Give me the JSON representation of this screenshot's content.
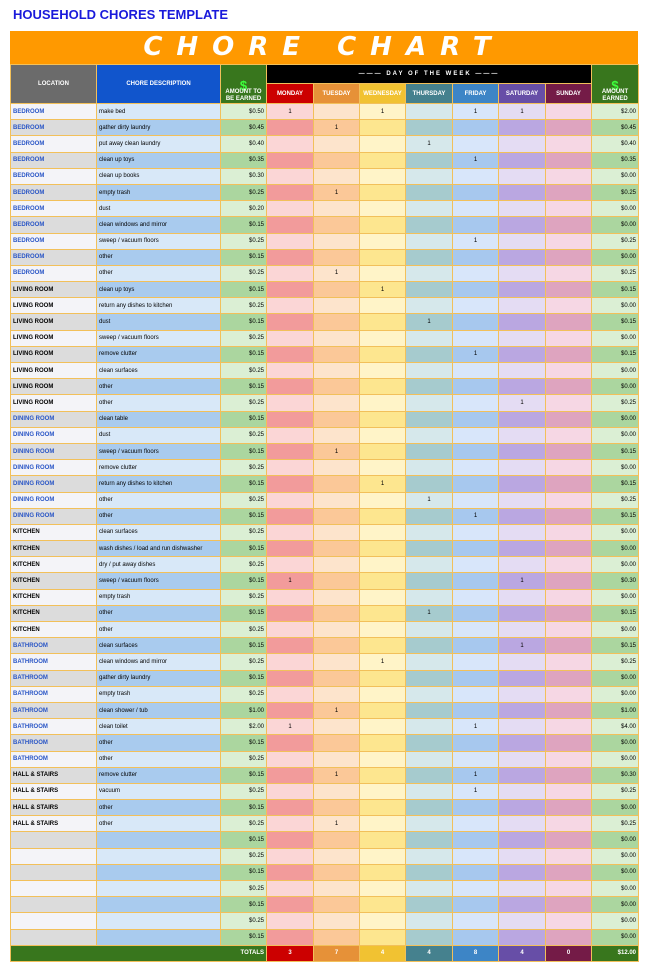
{
  "page_title": "HOUSEHOLD CHORES TEMPLATE",
  "banner": "CHORE CHART",
  "headers": {
    "location": "LOCATION",
    "description": "CHORE DESCRIPTION",
    "amount": "AMOUNT TO BE EARNED",
    "dollar": "$",
    "day_of_week": "——— DAY OF THE WEEK ———",
    "days": [
      "MONDAY",
      "TUESDAY",
      "WEDNESDAY",
      "THURSDAY",
      "FRIDAY",
      "SATURDAY",
      "SUNDAY"
    ],
    "earned": "AMOUNT EARNED"
  },
  "colors": {
    "header": [
      "#6b6b6b",
      "#1155cc",
      "#38761d",
      "#cc0000",
      "#e69138",
      "#f1c232",
      "#45818e",
      "#3d85c6",
      "#674ea7",
      "#741b47",
      "#38761d"
    ],
    "light": [
      "#f4f4f8",
      "#d8e8f8",
      "#dbefd4",
      "#fbd6d6",
      "#fde4cc",
      "#fff4c8",
      "#d6e8eb",
      "#d8e6fa",
      "#e4dcf3",
      "#f6d7e4",
      "#dbefd4"
    ],
    "dark": [
      "#dcdcdc",
      "#a9cbee",
      "#abd69f",
      "#f29b9b",
      "#fbc898",
      "#fde68f",
      "#a6cbce",
      "#a7c8ee",
      "#baa7e1",
      "#dea4bf",
      "#abd69f"
    ]
  },
  "rows": [
    [
      "BEDROOM",
      "make bed",
      "$0.50",
      [
        1,
        0,
        1,
        0,
        1,
        1,
        0
      ],
      "$2.00"
    ],
    [
      "BEDROOM",
      "gather dirty laundry",
      "$0.45",
      [
        0,
        1,
        0,
        0,
        0,
        0,
        0
      ],
      "$0.45"
    ],
    [
      "BEDROOM",
      "put away clean laundry",
      "$0.40",
      [
        0,
        0,
        0,
        1,
        0,
        0,
        0
      ],
      "$0.40"
    ],
    [
      "BEDROOM",
      "clean up toys",
      "$0.35",
      [
        0,
        0,
        0,
        0,
        1,
        0,
        0
      ],
      "$0.35"
    ],
    [
      "BEDROOM",
      "clean up books",
      "$0.30",
      [
        0,
        0,
        0,
        0,
        0,
        0,
        0
      ],
      "$0.00"
    ],
    [
      "BEDROOM",
      "empty trash",
      "$0.25",
      [
        0,
        1,
        0,
        0,
        0,
        0,
        0
      ],
      "$0.25"
    ],
    [
      "BEDROOM",
      "dust",
      "$0.20",
      [
        0,
        0,
        0,
        0,
        0,
        0,
        0
      ],
      "$0.00"
    ],
    [
      "BEDROOM",
      "clean windows and mirror",
      "$0.15",
      [
        0,
        0,
        0,
        0,
        0,
        0,
        0
      ],
      "$0.00"
    ],
    [
      "BEDROOM",
      "sweep / vacuum floors",
      "$0.25",
      [
        0,
        0,
        0,
        0,
        1,
        0,
        0
      ],
      "$0.25"
    ],
    [
      "BEDROOM",
      "other",
      "$0.15",
      [
        0,
        0,
        0,
        0,
        0,
        0,
        0
      ],
      "$0.00"
    ],
    [
      "BEDROOM",
      "other",
      "$0.25",
      [
        0,
        1,
        0,
        0,
        0,
        0,
        0
      ],
      "$0.25"
    ],
    [
      "LIVING ROOM",
      "clean up toys",
      "$0.15",
      [
        0,
        0,
        1,
        0,
        0,
        0,
        0
      ],
      "$0.15"
    ],
    [
      "LIVING ROOM",
      "return any dishes to kitchen",
      "$0.25",
      [
        0,
        0,
        0,
        0,
        0,
        0,
        0
      ],
      "$0.00"
    ],
    [
      "LIVING ROOM",
      "dust",
      "$0.15",
      [
        0,
        0,
        0,
        1,
        0,
        0,
        0
      ],
      "$0.15"
    ],
    [
      "LIVING ROOM",
      "sweep / vacuum floors",
      "$0.25",
      [
        0,
        0,
        0,
        0,
        0,
        0,
        0
      ],
      "$0.00"
    ],
    [
      "LIVING ROOM",
      "remove clutter",
      "$0.15",
      [
        0,
        0,
        0,
        0,
        1,
        0,
        0
      ],
      "$0.15"
    ],
    [
      "LIVING ROOM",
      "clean surfaces",
      "$0.25",
      [
        0,
        0,
        0,
        0,
        0,
        0,
        0
      ],
      "$0.00"
    ],
    [
      "LIVING ROOM",
      "other",
      "$0.15",
      [
        0,
        0,
        0,
        0,
        0,
        0,
        0
      ],
      "$0.00"
    ],
    [
      "LIVING ROOM",
      "other",
      "$0.25",
      [
        0,
        0,
        0,
        0,
        0,
        1,
        0
      ],
      "$0.25"
    ],
    [
      "DINING ROOM",
      "clean table",
      "$0.15",
      [
        0,
        0,
        0,
        0,
        0,
        0,
        0
      ],
      "$0.00"
    ],
    [
      "DINING ROOM",
      "dust",
      "$0.25",
      [
        0,
        0,
        0,
        0,
        0,
        0,
        0
      ],
      "$0.00"
    ],
    [
      "DINING ROOM",
      "sweep / vacuum floors",
      "$0.15",
      [
        0,
        1,
        0,
        0,
        0,
        0,
        0
      ],
      "$0.15"
    ],
    [
      "DINING ROOM",
      "remove clutter",
      "$0.25",
      [
        0,
        0,
        0,
        0,
        0,
        0,
        0
      ],
      "$0.00"
    ],
    [
      "DINING ROOM",
      "return any dishes to kitchen",
      "$0.15",
      [
        0,
        0,
        1,
        0,
        0,
        0,
        0
      ],
      "$0.15"
    ],
    [
      "DINING ROOM",
      "other",
      "$0.25",
      [
        0,
        0,
        0,
        1,
        0,
        0,
        0
      ],
      "$0.25"
    ],
    [
      "DINING ROOM",
      "other",
      "$0.15",
      [
        0,
        0,
        0,
        0,
        1,
        0,
        0
      ],
      "$0.15"
    ],
    [
      "KITCHEN",
      "clean surfaces",
      "$0.25",
      [
        0,
        0,
        0,
        0,
        0,
        0,
        0
      ],
      "$0.00"
    ],
    [
      "KITCHEN",
      "wash dishes / load and run dishwasher",
      "$0.15",
      [
        0,
        0,
        0,
        0,
        0,
        0,
        0
      ],
      "$0.00"
    ],
    [
      "KITCHEN",
      "dry / put away dishes",
      "$0.25",
      [
        0,
        0,
        0,
        0,
        0,
        0,
        0
      ],
      "$0.00"
    ],
    [
      "KITCHEN",
      "sweep / vacuum floors",
      "$0.15",
      [
        1,
        0,
        0,
        0,
        0,
        1,
        0
      ],
      "$0.30"
    ],
    [
      "KITCHEN",
      "empty trash",
      "$0.25",
      [
        0,
        0,
        0,
        0,
        0,
        0,
        0
      ],
      "$0.00"
    ],
    [
      "KITCHEN",
      "other",
      "$0.15",
      [
        0,
        0,
        0,
        1,
        0,
        0,
        0
      ],
      "$0.15"
    ],
    [
      "KITCHEN",
      "other",
      "$0.25",
      [
        0,
        0,
        0,
        0,
        0,
        0,
        0
      ],
      "$0.00"
    ],
    [
      "BATHROOM",
      "clean surfaces",
      "$0.15",
      [
        0,
        0,
        0,
        0,
        0,
        1,
        0
      ],
      "$0.15"
    ],
    [
      "BATHROOM",
      "clean windows and mirror",
      "$0.25",
      [
        0,
        0,
        1,
        0,
        0,
        0,
        0
      ],
      "$0.25"
    ],
    [
      "BATHROOM",
      "gather dirty laundry",
      "$0.15",
      [
        0,
        0,
        0,
        0,
        0,
        0,
        0
      ],
      "$0.00"
    ],
    [
      "BATHROOM",
      "empty trash",
      "$0.25",
      [
        0,
        0,
        0,
        0,
        0,
        0,
        0
      ],
      "$0.00"
    ],
    [
      "BATHROOM",
      "clean shower / tub",
      "$1.00",
      [
        0,
        1,
        0,
        0,
        0,
        0,
        0
      ],
      "$1.00"
    ],
    [
      "BATHROOM",
      "clean toilet",
      "$2.00",
      [
        1,
        0,
        0,
        0,
        1,
        0,
        0
      ],
      "$4.00"
    ],
    [
      "BATHROOM",
      "other",
      "$0.15",
      [
        0,
        0,
        0,
        0,
        0,
        0,
        0
      ],
      "$0.00"
    ],
    [
      "BATHROOM",
      "other",
      "$0.25",
      [
        0,
        0,
        0,
        0,
        0,
        0,
        0
      ],
      "$0.00"
    ],
    [
      "HALL & STAIRS",
      "remove clutter",
      "$0.15",
      [
        0,
        1,
        0,
        0,
        1,
        0,
        0
      ],
      "$0.30"
    ],
    [
      "HALL & STAIRS",
      "vacuum",
      "$0.25",
      [
        0,
        0,
        0,
        0,
        1,
        0,
        0
      ],
      "$0.25"
    ],
    [
      "HALL & STAIRS",
      "other",
      "$0.15",
      [
        0,
        0,
        0,
        0,
        0,
        0,
        0
      ],
      "$0.00"
    ],
    [
      "HALL & STAIRS",
      "other",
      "$0.25",
      [
        0,
        1,
        0,
        0,
        0,
        0,
        0
      ],
      "$0.25"
    ],
    [
      "",
      "",
      "$0.15",
      [
        0,
        0,
        0,
        0,
        0,
        0,
        0
      ],
      "$0.00"
    ],
    [
      "",
      "",
      "$0.25",
      [
        0,
        0,
        0,
        0,
        0,
        0,
        0
      ],
      "$0.00"
    ],
    [
      "",
      "",
      "$0.15",
      [
        0,
        0,
        0,
        0,
        0,
        0,
        0
      ],
      "$0.00"
    ],
    [
      "",
      "",
      "$0.25",
      [
        0,
        0,
        0,
        0,
        0,
        0,
        0
      ],
      "$0.00"
    ],
    [
      "",
      "",
      "$0.15",
      [
        0,
        0,
        0,
        0,
        0,
        0,
        0
      ],
      "$0.00"
    ],
    [
      "",
      "",
      "$0.25",
      [
        0,
        0,
        0,
        0,
        0,
        0,
        0
      ],
      "$0.00"
    ],
    [
      "",
      "",
      "$0.15",
      [
        0,
        0,
        0,
        0,
        0,
        0,
        0
      ],
      "$0.00"
    ]
  ],
  "blue_locations": [
    "BEDROOM",
    "DINING ROOM",
    "BATHROOM"
  ],
  "totals": {
    "label": "TOTALS",
    "days": [
      "3",
      "7",
      "4",
      "4",
      "8",
      "4",
      "0"
    ],
    "earned": "$12.00"
  }
}
